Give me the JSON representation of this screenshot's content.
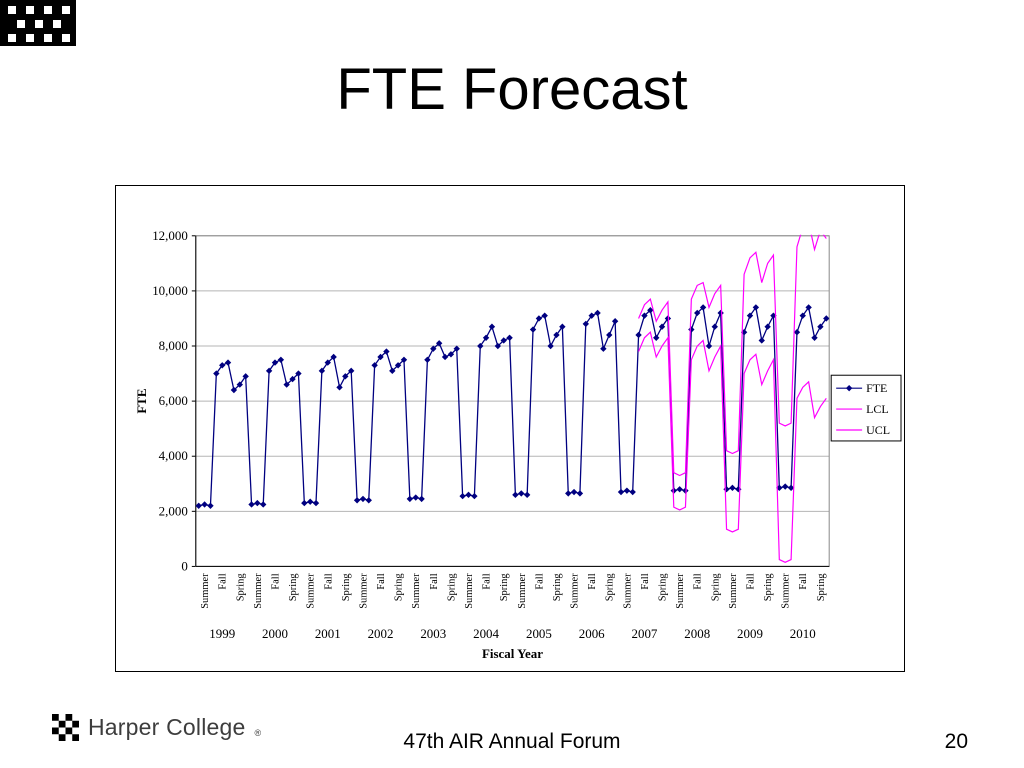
{
  "slide": {
    "title": "FTE Forecast",
    "footer_text": "47th AIR Annual Forum",
    "page_number": "20",
    "logo_text": "Harper College",
    "logo_reg": "®"
  },
  "chart_data": {
    "type": "line",
    "title": "",
    "xlabel": "Fiscal Year",
    "ylabel": "FTE",
    "ylim": [
      0,
      12000
    ],
    "ytick_interval": 2000,
    "ytick_labels": [
      "0",
      "2,000",
      "4,000",
      "6,000",
      "8,000",
      "10,000",
      "12,000"
    ],
    "grid": true,
    "grid_color": "#b5b5b5",
    "legend_position": "right",
    "terms": [
      "Summer",
      "Fall",
      "Spring"
    ],
    "years": [
      "1999",
      "2000",
      "2001",
      "2002",
      "2003",
      "2004",
      "2005",
      "2006",
      "2007",
      "2008",
      "2009",
      "2010"
    ],
    "points_per_term": 3,
    "series": [
      {
        "name": "FTE",
        "color": "#000080",
        "marker": "diamond",
        "start_index": 0,
        "values": [
          2200,
          2250,
          2200,
          7000,
          7300,
          7400,
          6400,
          6600,
          6900,
          2250,
          2300,
          2250,
          7100,
          7400,
          7500,
          6600,
          6800,
          7000,
          2300,
          2350,
          2300,
          7100,
          7400,
          7600,
          6500,
          6900,
          7100,
          2400,
          2450,
          2400,
          7300,
          7600,
          7800,
          7100,
          7300,
          7500,
          2450,
          2500,
          2450,
          7500,
          7900,
          8100,
          7600,
          7700,
          7900,
          2550,
          2600,
          2550,
          8000,
          8300,
          8700,
          8000,
          8200,
          8300,
          2600,
          2650,
          2600,
          8600,
          9000,
          9100,
          8000,
          8400,
          8700,
          2650,
          2700,
          2650,
          8800,
          9100,
          9200,
          7900,
          8400,
          8900,
          2700,
          2750,
          2700,
          8400,
          9100,
          9300,
          8300,
          8700,
          9000,
          2750,
          2800,
          2750,
          8600,
          9200,
          9400,
          8000,
          8700,
          9200,
          2800,
          2850,
          2800,
          8500,
          9100,
          9400,
          8200,
          8700,
          9100,
          2850,
          2900,
          2850,
          8500,
          9100,
          9400,
          8300,
          8700,
          9000
        ]
      },
      {
        "name": "LCL",
        "color": "#FF00FF",
        "marker": "none",
        "start_index": 75,
        "values": [
          7800,
          8300,
          8500,
          7600,
          8000,
          8300,
          2150,
          2050,
          2150,
          7500,
          8000,
          8200,
          7100,
          7600,
          8000,
          1350,
          1250,
          1350,
          7000,
          7500,
          7700,
          6600,
          7100,
          7500,
          250,
          150,
          250,
          6100,
          6500,
          6700,
          5400,
          5800,
          6100
        ]
      },
      {
        "name": "UCL",
        "color": "#FF00FF",
        "marker": "none",
        "start_index": 75,
        "values": [
          9000,
          9500,
          9700,
          8900,
          9300,
          9600,
          3400,
          3300,
          3400,
          9700,
          10200,
          10300,
          9400,
          9900,
          10200,
          4200,
          4100,
          4200,
          10600,
          11200,
          11400,
          10300,
          11000,
          11300,
          5200,
          5100,
          5200,
          11600,
          12300,
          12500,
          11500,
          12200,
          11900
        ]
      }
    ]
  }
}
